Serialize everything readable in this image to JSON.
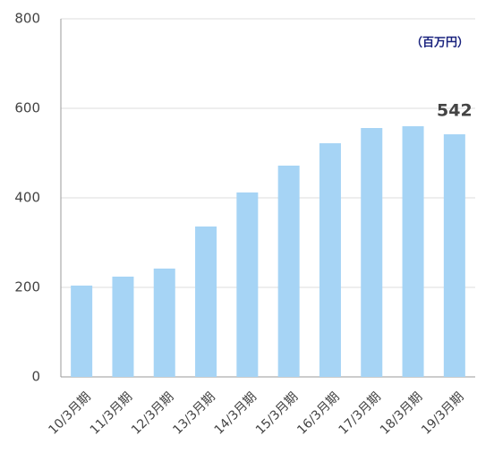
{
  "chart_data": {
    "type": "bar",
    "unit_label": "（百万円）",
    "categories": [
      "10/3月期",
      "11/3月期",
      "12/3月期",
      "13/3月期",
      "14/3月期",
      "15/3月期",
      "16/3月期",
      "17/3月期",
      "18/3月期",
      "19/3月期"
    ],
    "values": [
      204,
      224,
      242,
      336,
      412,
      472,
      522,
      556,
      560,
      542
    ],
    "color": "#a6d4f5",
    "labeled_index": 9,
    "ylim": [
      0,
      800
    ],
    "yticks": [
      0,
      200,
      400,
      600,
      800
    ],
    "grid": true
  }
}
